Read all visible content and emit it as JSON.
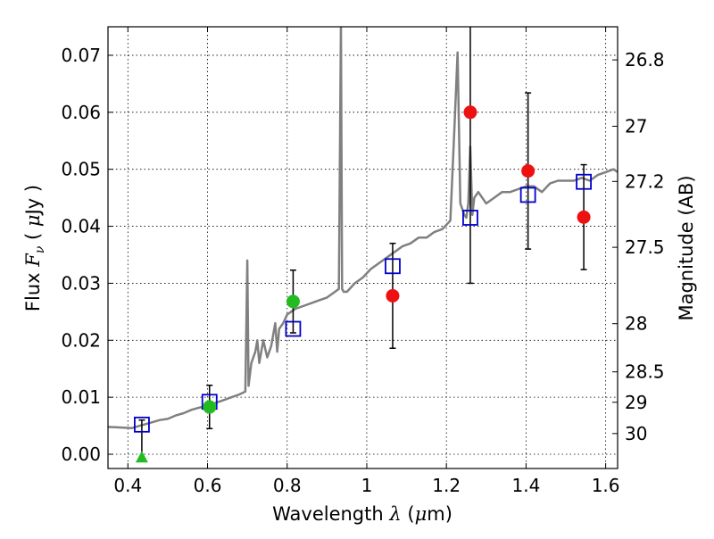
{
  "chart_data": {
    "type": "scatter",
    "xlabel": {
      "prefix": "Wavelength",
      "symbol": "λ",
      "unit_open": "(",
      "unit_mu": "μ",
      "unit_rest": "m)"
    },
    "ylabel": {
      "prefix": "Flux",
      "symbol": "F",
      "subscript": "ν",
      "unit_open": "(",
      "unit_mu": "μ",
      "unit_rest": "Jy",
      "unit_close": ")"
    },
    "y2label": "Magnitude (AB)",
    "xlim": [
      0.35,
      1.63
    ],
    "ylim": [
      -0.0025,
      0.075
    ],
    "grid": true,
    "x_ticks": [
      0.4,
      0.6,
      0.8,
      1.0,
      1.2,
      1.4,
      1.6
    ],
    "x_tick_labels": [
      "0.4",
      "0.6",
      "0.8",
      "1",
      "1.2",
      "1.4",
      "1.6"
    ],
    "y_ticks": [
      0.0,
      0.01,
      0.02,
      0.03,
      0.04,
      0.05,
      0.06,
      0.07
    ],
    "y_tick_labels": [
      "0.00",
      "0.01",
      "0.02",
      "0.03",
      "0.04",
      "0.05",
      "0.06",
      "0.07"
    ],
    "y2_ticks": [
      26.8,
      27,
      27.2,
      27.5,
      28,
      28.5,
      29,
      30
    ],
    "y2_tick_labels": [
      "26.8",
      "27",
      "27.2",
      "27.5",
      "28",
      "28.5",
      "29",
      "30"
    ],
    "colors": {
      "spectrum": "#808080",
      "model": "#0000cc",
      "green": "#22bb22",
      "red": "#ee1111",
      "errorbar": "#000000",
      "grid": "#000000"
    },
    "spectrum": {
      "x": [
        0.35,
        0.38,
        0.41,
        0.43,
        0.46,
        0.48,
        0.5,
        0.52,
        0.54,
        0.56,
        0.58,
        0.6,
        0.62,
        0.64,
        0.66,
        0.68,
        0.695,
        0.7,
        0.703,
        0.71,
        0.72,
        0.725,
        0.73,
        0.74,
        0.75,
        0.76,
        0.77,
        0.775,
        0.78,
        0.79,
        0.8,
        0.82,
        0.84,
        0.86,
        0.88,
        0.9,
        0.92,
        0.93,
        0.935,
        0.938,
        0.942,
        0.95,
        0.97,
        0.99,
        1.01,
        1.03,
        1.05,
        1.07,
        1.09,
        1.11,
        1.13,
        1.15,
        1.17,
        1.19,
        1.21,
        1.22,
        1.228,
        1.235,
        1.245,
        1.25,
        1.255,
        1.26,
        1.265,
        1.27,
        1.28,
        1.3,
        1.32,
        1.34,
        1.36,
        1.38,
        1.4,
        1.42,
        1.44,
        1.46,
        1.48,
        1.5,
        1.52,
        1.54,
        1.56,
        1.58,
        1.6,
        1.62,
        1.63
      ],
      "y": [
        0.0048,
        0.0047,
        0.0046,
        0.005,
        0.0056,
        0.006,
        0.0062,
        0.0068,
        0.0072,
        0.0078,
        0.0082,
        0.0085,
        0.009,
        0.0095,
        0.01,
        0.0105,
        0.011,
        0.034,
        0.012,
        0.016,
        0.018,
        0.02,
        0.016,
        0.02,
        0.017,
        0.019,
        0.023,
        0.018,
        0.022,
        0.023,
        0.0245,
        0.0255,
        0.026,
        0.0265,
        0.027,
        0.0275,
        0.0285,
        0.029,
        0.076,
        0.029,
        0.0285,
        0.0285,
        0.03,
        0.031,
        0.0325,
        0.0335,
        0.0345,
        0.0355,
        0.0365,
        0.037,
        0.038,
        0.038,
        0.039,
        0.0395,
        0.041,
        0.057,
        0.0705,
        0.044,
        0.042,
        0.0415,
        0.044,
        0.054,
        0.042,
        0.045,
        0.046,
        0.044,
        0.045,
        0.046,
        0.046,
        0.0465,
        0.047,
        0.047,
        0.046,
        0.0475,
        0.048,
        0.048,
        0.048,
        0.0485,
        0.048,
        0.049,
        0.0495,
        0.05,
        0.0495
      ]
    },
    "model_points": {
      "x": [
        0.435,
        0.605,
        0.815,
        1.065,
        1.26,
        1.405,
        1.545
      ],
      "y": [
        0.0052,
        0.0092,
        0.022,
        0.033,
        0.0415,
        0.0455,
        0.0478
      ]
    },
    "green_points": {
      "x": [
        0.605,
        0.815
      ],
      "y": [
        0.0083,
        0.0268
      ],
      "err": [
        0.0038,
        0.0055
      ]
    },
    "green_upper_limit": {
      "x": 0.435,
      "y": -0.0005,
      "err_top": 0.0065
    },
    "red_points": {
      "x": [
        1.065,
        1.26,
        1.405,
        1.545
      ],
      "y": [
        0.0278,
        0.06,
        0.0497,
        0.0416
      ],
      "err": [
        0.0092,
        0.03,
        0.0137,
        0.0092
      ]
    }
  }
}
